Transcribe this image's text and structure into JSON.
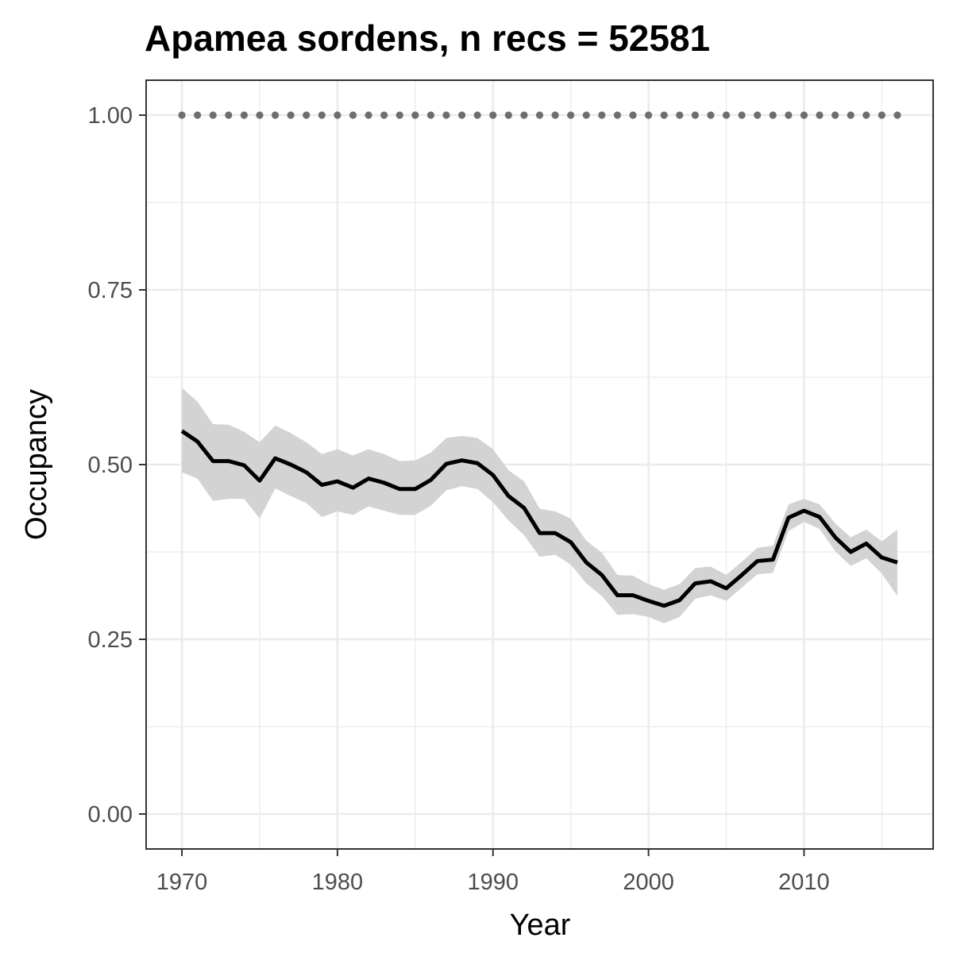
{
  "chart_data": {
    "type": "line",
    "title": "Apamea sordens, n recs = 52581",
    "xlabel": "Year",
    "ylabel": "Occupancy",
    "xlim": [
      1967.7,
      2018.3
    ],
    "ylim": [
      -0.05,
      1.05
    ],
    "xticks": [
      1970,
      1980,
      1990,
      2000,
      2010
    ],
    "xtick_labels": [
      "1970",
      "1980",
      "1990",
      "2000",
      "2010"
    ],
    "yticks": [
      0,
      0.25,
      0.5,
      0.75,
      1
    ],
    "ytick_labels": [
      "0.00",
      "0.25",
      "0.50",
      "0.75",
      "1.00"
    ],
    "grid": true,
    "colors": {
      "line": "#000000",
      "ribbon": "#d3d3d3",
      "dots": "#6e6e6e",
      "grid": "#ebebeb",
      "panel_border": "#333333"
    },
    "series": [
      {
        "type": "line",
        "x": [
          1970,
          1971,
          1972,
          1973,
          1974,
          1975,
          1976,
          1977,
          1978,
          1979,
          1980,
          1981,
          1982,
          1983,
          1984,
          1985,
          1986,
          1987,
          1988,
          1989,
          1990,
          1991,
          1992,
          1993,
          1994,
          1995,
          1996,
          1997,
          1998,
          1999,
          2000,
          2001,
          2002,
          2003,
          2004,
          2005,
          2006,
          2007,
          2008,
          2009,
          2010,
          2011,
          2012,
          2013,
          2014,
          2015,
          2016
        ],
        "y": [
          0.548,
          0.533,
          0.505,
          0.505,
          0.499,
          0.477,
          0.509,
          0.5,
          0.489,
          0.471,
          0.476,
          0.467,
          0.48,
          0.474,
          0.465,
          0.465,
          0.478,
          0.501,
          0.506,
          0.502,
          0.485,
          0.455,
          0.438,
          0.402,
          0.402,
          0.389,
          0.36,
          0.342,
          0.313,
          0.313,
          0.305,
          0.298,
          0.306,
          0.33,
          0.333,
          0.323,
          0.342,
          0.362,
          0.364,
          0.424,
          0.434,
          0.425,
          0.396,
          0.375,
          0.387,
          0.367,
          0.36
        ],
        "lower": [
          0.489,
          0.48,
          0.448,
          0.451,
          0.451,
          0.423,
          0.466,
          0.455,
          0.445,
          0.425,
          0.433,
          0.428,
          0.44,
          0.434,
          0.428,
          0.428,
          0.441,
          0.463,
          0.469,
          0.465,
          0.446,
          0.42,
          0.399,
          0.368,
          0.371,
          0.357,
          0.33,
          0.312,
          0.285,
          0.286,
          0.282,
          0.273,
          0.282,
          0.308,
          0.313,
          0.305,
          0.324,
          0.343,
          0.345,
          0.405,
          0.418,
          0.408,
          0.376,
          0.355,
          0.366,
          0.344,
          0.312
        ],
        "upper": [
          0.61,
          0.59,
          0.558,
          0.557,
          0.547,
          0.532,
          0.556,
          0.545,
          0.532,
          0.515,
          0.522,
          0.513,
          0.522,
          0.515,
          0.505,
          0.506,
          0.517,
          0.538,
          0.541,
          0.538,
          0.522,
          0.492,
          0.476,
          0.437,
          0.433,
          0.423,
          0.391,
          0.374,
          0.342,
          0.341,
          0.329,
          0.321,
          0.329,
          0.352,
          0.354,
          0.342,
          0.361,
          0.381,
          0.384,
          0.443,
          0.451,
          0.443,
          0.416,
          0.396,
          0.407,
          0.39,
          0.407
        ]
      },
      {
        "type": "points",
        "x": [
          1970,
          1971,
          1972,
          1973,
          1974,
          1975,
          1976,
          1977,
          1978,
          1979,
          1980,
          1981,
          1982,
          1983,
          1984,
          1985,
          1986,
          1987,
          1988,
          1989,
          1990,
          1991,
          1992,
          1993,
          1994,
          1995,
          1996,
          1997,
          1998,
          1999,
          2000,
          2001,
          2002,
          2003,
          2004,
          2005,
          2006,
          2007,
          2008,
          2009,
          2010,
          2011,
          2012,
          2013,
          2014,
          2015,
          2016
        ],
        "y": [
          1,
          1,
          1,
          1,
          1,
          1,
          1,
          1,
          1,
          1,
          1,
          1,
          1,
          1,
          1,
          1,
          1,
          1,
          1,
          1,
          1,
          1,
          1,
          1,
          1,
          1,
          1,
          1,
          1,
          1,
          1,
          1,
          1,
          1,
          1,
          1,
          1,
          1,
          1,
          1,
          1,
          1,
          1,
          1,
          1,
          1,
          1
        ]
      }
    ]
  }
}
